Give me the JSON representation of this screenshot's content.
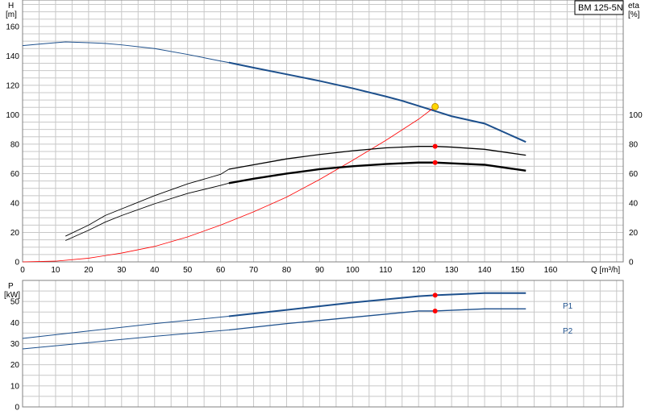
{
  "chart_data": [
    {
      "type": "line",
      "title": "BM 125-5N",
      "xlabel": "Q [m³/h]",
      "ylabel_left": [
        "H",
        "[m]"
      ],
      "ylabel_right": [
        "eta",
        "[%]"
      ],
      "xlim": [
        0,
        182
      ],
      "ylim": [
        0,
        178
      ],
      "x_ticks": [
        0,
        10,
        20,
        30,
        40,
        50,
        60,
        70,
        80,
        90,
        100,
        110,
        120,
        130,
        140,
        150,
        160
      ],
      "y_ticks_left": [
        0,
        20,
        40,
        60,
        80,
        100,
        120,
        140,
        160
      ],
      "y_ticks_right": [
        0,
        20,
        40,
        60,
        80,
        100
      ],
      "grid": true,
      "series": [
        {
          "color": "#1c4f8c",
          "points": [
            [
              0,
              147
            ],
            [
              5,
              148
            ],
            [
              10,
              149
            ],
            [
              13,
              149.5
            ],
            [
              20,
              149
            ],
            [
              25,
              148.5
            ],
            [
              30,
              147.5
            ],
            [
              40,
              145
            ],
            [
              50,
              141
            ],
            [
              60,
              136.5
            ],
            [
              62.5,
              135.5
            ],
            [
              70,
              132
            ],
            [
              80,
              127.5
            ],
            [
              90,
              123
            ],
            [
              100,
              118
            ],
            [
              110,
              112.5
            ],
            [
              115,
              109.5
            ],
            [
              120,
              106
            ],
            [
              125,
              102.5
            ],
            [
              130,
              99
            ],
            [
              140,
              94
            ],
            [
              152.5,
              81.5
            ]
          ]
        },
        {
          "color": "#ff0000",
          "points": [
            [
              0,
              0
            ],
            [
              10,
              0.5
            ],
            [
              20,
              2.5
            ],
            [
              30,
              6
            ],
            [
              40,
              10.5
            ],
            [
              50,
              17
            ],
            [
              60,
              25
            ],
            [
              70,
              34
            ],
            [
              80,
              44
            ],
            [
              90,
              56
            ],
            [
              100,
              69
            ],
            [
              110,
              82.5
            ],
            [
              120,
              97
            ],
            [
              125,
              105.5
            ]
          ]
        },
        {
          "color": "#000000",
          "points": [
            [
              13,
              17.5
            ],
            [
              20,
              25
            ],
            [
              25,
              31.5
            ],
            [
              30,
              36
            ],
            [
              40,
              45
            ],
            [
              50,
              53
            ],
            [
              60,
              59.5
            ],
            [
              62.5,
              63
            ],
            [
              70,
              66
            ],
            [
              80,
              70
            ],
            [
              90,
              73
            ],
            [
              100,
              75.5
            ],
            [
              110,
              77.5
            ],
            [
              120,
              78.5
            ],
            [
              125,
              78.5
            ],
            [
              130,
              78
            ],
            [
              140,
              76.5
            ],
            [
              152.5,
              72.5
            ]
          ]
        },
        {
          "color": "#000000",
          "points": [
            [
              13,
              14.5
            ],
            [
              20,
              21.5
            ],
            [
              25,
              27
            ],
            [
              30,
              31.5
            ],
            [
              40,
              39.5
            ],
            [
              50,
              46.5
            ],
            [
              60,
              52
            ],
            [
              62.5,
              53.5
            ],
            [
              70,
              56.5
            ],
            [
              80,
              60
            ],
            [
              90,
              63
            ],
            [
              100,
              65
            ],
            [
              110,
              66.5
            ],
            [
              120,
              67.5
            ],
            [
              125,
              67.5
            ],
            [
              130,
              67
            ],
            [
              140,
              66
            ],
            [
              152.5,
              62
            ]
          ]
        }
      ],
      "markers": [
        {
          "x": 125,
          "y": 105.5,
          "color": "#ffd700",
          "stroke": "#c09000"
        },
        {
          "x": 125,
          "y": 78.5,
          "color": "#ff0000"
        },
        {
          "x": 125,
          "y": 67.5,
          "color": "#ff0000"
        }
      ]
    },
    {
      "type": "line",
      "ylabel": [
        "P",
        "[kW]"
      ],
      "xlim": [
        0,
        182
      ],
      "ylim": [
        0,
        60
      ],
      "y_ticks": [
        0,
        10,
        20,
        30,
        40,
        50
      ],
      "grid": true,
      "series": [
        {
          "name": "P1",
          "color": "#1c4f8c",
          "points": [
            [
              0,
              32.5
            ],
            [
              20,
              36
            ],
            [
              40,
              39.5
            ],
            [
              62.5,
              43
            ],
            [
              80,
              46
            ],
            [
              100,
              49.5
            ],
            [
              120,
              52.5
            ],
            [
              125,
              53
            ],
            [
              140,
              54
            ],
            [
              152.5,
              54
            ]
          ]
        },
        {
          "name": "P2",
          "color": "#1c4f8c",
          "points": [
            [
              0,
              27.5
            ],
            [
              20,
              30.5
            ],
            [
              40,
              33.5
            ],
            [
              62.5,
              36.5
            ],
            [
              80,
              39.5
            ],
            [
              100,
              42.5
            ],
            [
              120,
              45.5
            ],
            [
              125,
              45.5
            ],
            [
              140,
              46.5
            ],
            [
              152.5,
              46.5
            ]
          ]
        }
      ],
      "markers": [
        {
          "x": 125,
          "y": 53,
          "color": "#ff0000"
        },
        {
          "x": 125,
          "y": 45.5,
          "color": "#ff0000"
        }
      ]
    }
  ]
}
